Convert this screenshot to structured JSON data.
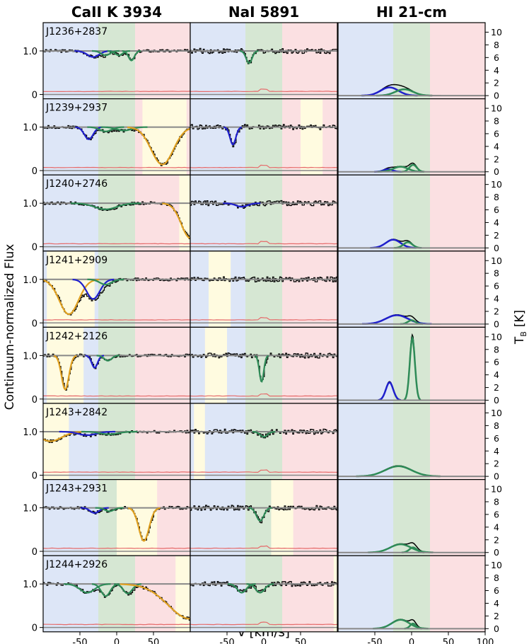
{
  "chart_data": {
    "type": "line",
    "ylabel": "Continuum-normalized Flux",
    "ylabel_right": "T",
    "ylabel_right_sub": "B",
    "ylabel_right_unit": "[K]",
    "xlabel": "v [km/s]",
    "xlim": [
      -100,
      100
    ],
    "flux_ylim": [
      -0.1,
      1.65
    ],
    "tb_ylim": [
      -0.5,
      11.5
    ],
    "flux_yticks": [
      {
        "v": 0,
        "label": "0"
      },
      {
        "v": 1.0,
        "label": "1.0"
      }
    ],
    "tb_yticks": [
      0,
      2,
      4,
      6,
      8,
      10
    ],
    "tb_ytick_labels": [
      "0",
      "2",
      "4",
      "6",
      "8",
      "10"
    ],
    "xticks_caii": [
      -50,
      0,
      50
    ],
    "xticks_caii_labels": [
      "-50",
      "0",
      "50"
    ],
    "xticks_nai": [
      -50,
      0,
      50
    ],
    "xticks_nai_labels": [
      "-50",
      "0",
      "50"
    ],
    "xticks_hi": [
      -50,
      0,
      50,
      100
    ],
    "xticks_hi_labels": [
      "-50",
      "0",
      "50",
      "100"
    ],
    "columns": [
      "CaII K 3934",
      "NaI 5891",
      "HI 21-cm"
    ],
    "colors": {
      "blue_region": "#dde6f7",
      "green_region": "#d6e7d3",
      "red_region": "#fbe0e2",
      "yellow_region": "#fffbe0",
      "spectrum": "#000000",
      "model": "#888888",
      "blue_comp": "#1f1fcc",
      "green_comp": "#2e8b57",
      "orange_comp": "#e0a020",
      "error": "#e66b6b"
    },
    "regions": {
      "blue": [
        -100,
        -25
      ],
      "green": [
        -25,
        25
      ],
      "red": [
        25,
        100
      ]
    },
    "rows": [
      {
        "name": "J1236+2837",
        "caii": [
          {
            "c": -32,
            "d": 0.14,
            "w": 8,
            "col": "blue"
          },
          {
            "c": -15,
            "d": 0.1,
            "w": 6,
            "col": "green"
          },
          {
            "c": 3,
            "d": 0.1,
            "w": 5,
            "col": "green"
          },
          {
            "c": 20,
            "d": 0.22,
            "w": 4,
            "col": "green"
          }
        ],
        "nai": [
          {
            "c": -20,
            "d": 0.28,
            "w": 4,
            "col": "green"
          }
        ],
        "hi": [
          {
            "c": -30,
            "d": 1.3,
            "w": 12,
            "col": "blue"
          },
          {
            "c": -10,
            "d": 1.0,
            "w": 12,
            "col": "green"
          }
        ],
        "caii_yellow": [],
        "nai_yellow": []
      },
      {
        "name": "J1239+2937",
        "caii": [
          {
            "c": -38,
            "d": 0.28,
            "w": 6,
            "col": "blue"
          },
          {
            "c": -15,
            "d": 0.1,
            "w": 8,
            "col": "green"
          },
          {
            "c": 10,
            "d": 0.08,
            "w": 10,
            "col": "green"
          },
          {
            "c": 62,
            "d": 0.86,
            "w": 15,
            "col": "orange"
          }
        ],
        "nai": [
          {
            "c": -42,
            "d": 0.4,
            "w": 4,
            "col": "blue"
          }
        ],
        "hi": [
          {
            "c": -32,
            "d": 0.4,
            "w": 6,
            "col": "blue"
          },
          {
            "c": -15,
            "d": 0.8,
            "w": 10,
            "col": "green"
          },
          {
            "c": 2,
            "d": 1.1,
            "w": 5,
            "col": "green"
          }
        ],
        "caii_yellow": [
          [
            35,
            95
          ]
        ],
        "nai_yellow": [
          [
            50,
            80
          ]
        ]
      },
      {
        "name": "J1240+2746",
        "caii": [
          {
            "c": -15,
            "d": 0.14,
            "w": 15,
            "col": "green"
          },
          {
            "c": 100,
            "d": 0.8,
            "w": 12,
            "col": "orange"
          }
        ],
        "nai": [
          {
            "c": -30,
            "d": 0.08,
            "w": 8,
            "col": "blue"
          }
        ],
        "hi": [
          {
            "c": -25,
            "d": 1.3,
            "w": 10,
            "col": "blue"
          },
          {
            "c": -5,
            "d": 0.9,
            "w": 6,
            "col": "green"
          }
        ],
        "caii_yellow": [
          [
            85,
            100
          ]
        ],
        "nai_yellow": []
      },
      {
        "name": "J1241+2909",
        "caii": [
          {
            "c": -65,
            "d": 0.8,
            "w": 13,
            "col": "orange"
          },
          {
            "c": -32,
            "d": 0.45,
            "w": 9,
            "col": "blue"
          },
          {
            "c": -15,
            "d": 0.12,
            "w": 8,
            "col": "green"
          }
        ],
        "nai": [],
        "hi": [
          {
            "c": -20,
            "d": 1.4,
            "w": 15,
            "col": "blue"
          },
          {
            "c": 0,
            "d": 0.6,
            "w": 5,
            "col": "green"
          }
        ],
        "caii_yellow": [
          [
            -95,
            -30
          ]
        ],
        "nai_yellow": [
          [
            -75,
            -45
          ]
        ]
      },
      {
        "name": "J1242+2126",
        "caii": [
          {
            "c": -70,
            "d": 0.78,
            "w": 5,
            "col": "orange"
          },
          {
            "c": -30,
            "d": 0.28,
            "w": 4,
            "col": "blue"
          },
          {
            "c": -12,
            "d": 0.12,
            "w": 5,
            "col": "green"
          }
        ],
        "nai": [
          {
            "c": -3,
            "d": 0.6,
            "w": 3,
            "col": "green"
          }
        ],
        "hi": [
          {
            "c": -30,
            "d": 2.8,
            "w": 5,
            "col": "blue"
          },
          {
            "c": 1,
            "d": 9.8,
            "w": 3.5,
            "col": "green"
          }
        ],
        "caii_yellow": [
          [
            -95,
            -45
          ]
        ],
        "nai_yellow": [
          [
            -80,
            -50
          ]
        ]
      },
      {
        "name": "J1243+2842",
        "caii": [
          {
            "c": -90,
            "d": 0.22,
            "w": 15,
            "col": "orange"
          },
          {
            "c": -40,
            "d": 0.08,
            "w": 12,
            "col": "blue"
          },
          {
            "c": -10,
            "d": 0.06,
            "w": 12,
            "col": "green"
          }
        ],
        "nai": [
          {
            "c": 0,
            "d": 0.12,
            "w": 5,
            "col": "green"
          }
        ],
        "hi": [
          {
            "c": -18,
            "d": 1.6,
            "w": 18,
            "col": "green"
          }
        ],
        "caii_yellow": [
          [
            -100,
            -65
          ]
        ],
        "nai_yellow": [
          [
            -95,
            -80
          ]
        ]
      },
      {
        "name": "J1243+2931",
        "caii": [
          {
            "c": -30,
            "d": 0.12,
            "w": 6,
            "col": "blue"
          },
          {
            "c": -10,
            "d": 0.08,
            "w": 6,
            "col": "green"
          },
          {
            "c": 37,
            "d": 0.76,
            "w": 7,
            "col": "orange"
          }
        ],
        "nai": [
          {
            "c": -5,
            "d": 0.3,
            "w": 5,
            "col": "green"
          }
        ],
        "hi": [
          {
            "c": -15,
            "d": 1.3,
            "w": 14,
            "col": "green"
          },
          {
            "c": 2,
            "d": 0.8,
            "w": 5,
            "col": "green"
          }
        ],
        "caii_yellow": [
          [
            0,
            55
          ]
        ],
        "nai_yellow": [
          [
            10,
            40
          ]
        ]
      },
      {
        "name": "J1244+2926",
        "caii": [
          {
            "c": -40,
            "d": 0.2,
            "w": 10,
            "col": "green"
          },
          {
            "c": -15,
            "d": 0.28,
            "w": 6,
            "col": "green"
          },
          {
            "c": 15,
            "d": 0.22,
            "w": 6,
            "col": "green"
          },
          {
            "c": 100,
            "d": 0.8,
            "w": 30,
            "col": "orange"
          }
        ],
        "nai": [
          {
            "c": -30,
            "d": 0.2,
            "w": 6,
            "col": "green"
          },
          {
            "c": -5,
            "d": 0.2,
            "w": 6,
            "col": "green"
          }
        ],
        "hi": [
          {
            "c": -15,
            "d": 1.4,
            "w": 12,
            "col": "green"
          },
          {
            "c": 2,
            "d": 0.8,
            "w": 4,
            "col": "green"
          }
        ],
        "caii_yellow": [
          [
            80,
            100
          ]
        ],
        "nai_yellow": [
          [
            95,
            100
          ]
        ]
      }
    ]
  }
}
